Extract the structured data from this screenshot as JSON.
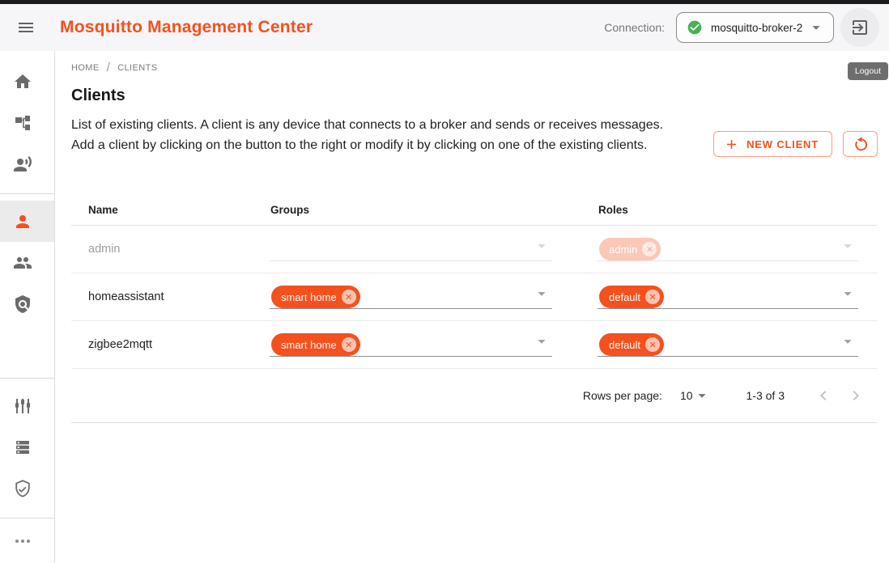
{
  "colors": {
    "accent": "#f4511e",
    "status_ok": "#4caf50"
  },
  "header": {
    "title": "Mosquitto Management Center",
    "menu_icon": "hamburger-menu",
    "connection_label": "Connection:",
    "connection": {
      "value": "mosquitto-broker-2",
      "status_icon": "check-circle",
      "status_color": "#4caf50"
    },
    "logout_icon": "exit-to-app",
    "logout_tooltip": "Logout"
  },
  "sidebar": {
    "items": [
      {
        "icon": "home-icon",
        "selected": false
      },
      {
        "icon": "topology-icon",
        "selected": false
      },
      {
        "icon": "record-voice-over-icon",
        "selected": false
      },
      {
        "icon": "person-icon",
        "selected": true
      },
      {
        "icon": "people-icon",
        "selected": false
      },
      {
        "icon": "policy-icon",
        "selected": false
      },
      {
        "icon": "tune-sliders-icon",
        "selected": false
      },
      {
        "icon": "server-list-icon",
        "selected": false
      },
      {
        "icon": "verified-user-icon",
        "selected": false
      },
      {
        "icon": "more-horiz-icon",
        "selected": false
      }
    ]
  },
  "breadcrumb": {
    "items": [
      "HOME",
      "CLIENTS"
    ],
    "separator": "/"
  },
  "page": {
    "title": "Clients",
    "description": "List of existing clients. A client is any device that connects to a broker and sends or receives messages. Add a client by clicking on the button to the right or modify it by clicking on one of the existing clients.",
    "new_client_label": "NEW CLIENT"
  },
  "table": {
    "columns": [
      "Name",
      "Groups",
      "Roles"
    ],
    "rows": [
      {
        "name": "admin",
        "disabled": true,
        "groups": [],
        "roles": [
          "admin"
        ]
      },
      {
        "name": "homeassistant",
        "disabled": false,
        "groups": [
          "smart home"
        ],
        "roles": [
          "default"
        ]
      },
      {
        "name": "zigbee2mqtt",
        "disabled": false,
        "groups": [
          "smart home"
        ],
        "roles": [
          "default"
        ]
      }
    ],
    "pagination": {
      "rows_per_page_label": "Rows per page:",
      "rows_per_page": "10",
      "range_label": "1-3 of 3",
      "prev_icon": "chevron-left",
      "next_icon": "chevron-right"
    }
  }
}
